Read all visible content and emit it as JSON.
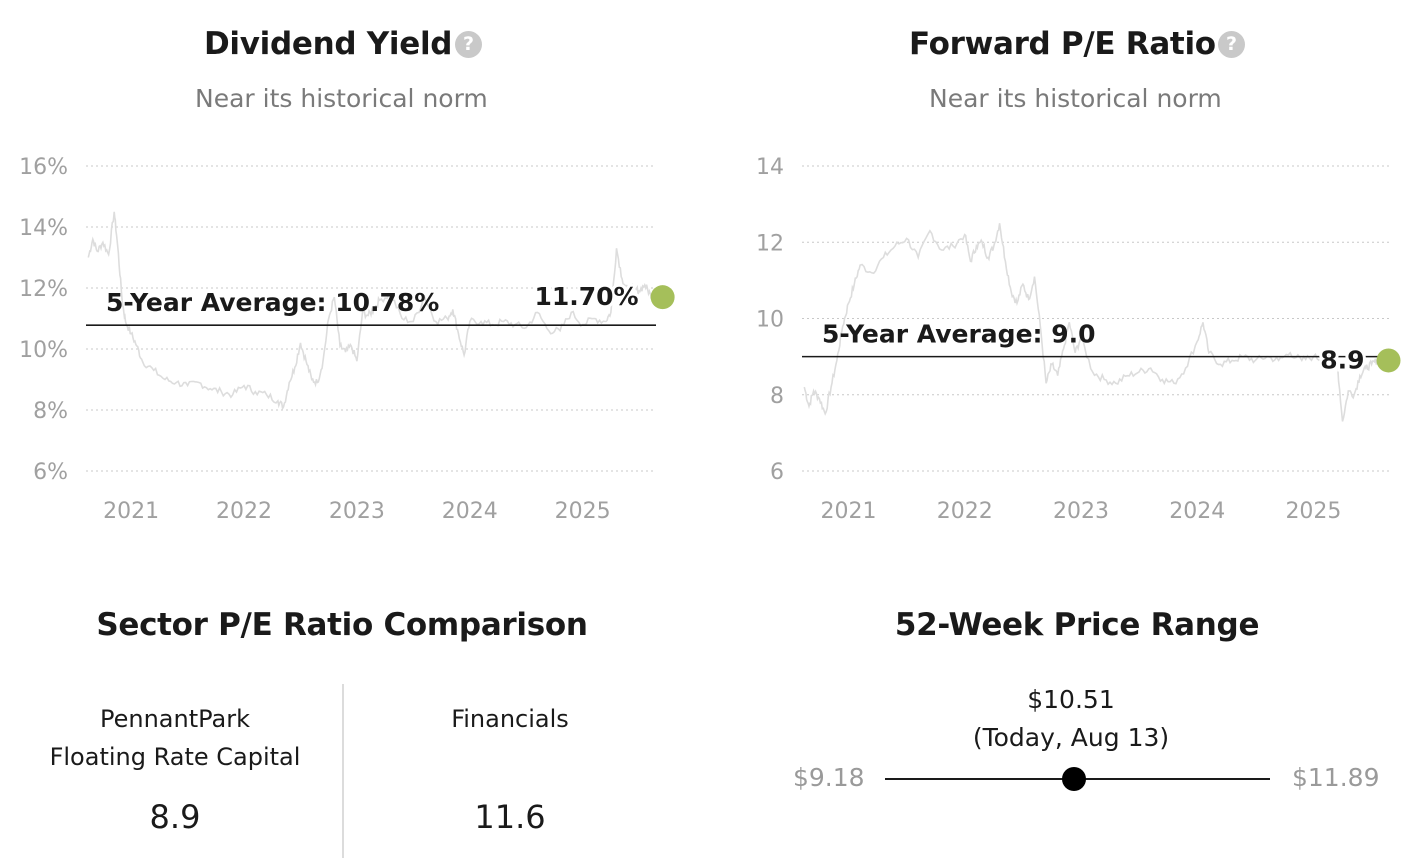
{
  "dividend_yield": {
    "title": "Dividend Yield",
    "subtitle": "Near its historical norm",
    "average_label": "5-Year Average: 10.78%",
    "current_label": "11.70%"
  },
  "forward_pe": {
    "title": "Forward P/E Ratio",
    "subtitle": "Near its historical norm",
    "average_label": "5-Year Average: 9.0",
    "current_label": "8.9"
  },
  "sector_pe": {
    "title": "Sector P/E Ratio Comparison",
    "company_line1": "PennantPark",
    "company_line2": "Floating Rate Capital",
    "company_value": "8.9",
    "sector_name": "Financials",
    "sector_value": "11.6"
  },
  "price_range": {
    "title": "52-Week Price Range",
    "low_label": "$9.18",
    "high_label": "$11.89",
    "current_label": "$10.51",
    "current_note": "(Today, Aug 13)",
    "low": 9.18,
    "high": 11.89,
    "current": 10.51
  },
  "chart_data": [
    {
      "type": "line",
      "title": "Dividend Yield",
      "subtitle": "Near its historical norm",
      "y_ticks": [
        "6%",
        "8%",
        "10%",
        "12%",
        "14%",
        "16%"
      ],
      "x_ticks": [
        "2021",
        "2022",
        "2023",
        "2024",
        "2025"
      ],
      "ylim": [
        6,
        16
      ],
      "xlim": [
        2020.6,
        2025.65
      ],
      "grid": true,
      "average": 10.78,
      "current": 11.7,
      "series": [
        {
          "color": "#dddddd",
          "x": [
            2020.62,
            2020.66,
            2020.7,
            2020.75,
            2020.8,
            2020.85,
            2020.88,
            2020.92,
            2020.95,
            2021.0,
            2021.05,
            2021.1,
            2021.2,
            2021.3,
            2021.4,
            2021.5,
            2021.6,
            2021.7,
            2021.8,
            2021.9,
            2022.0,
            2022.1,
            2022.2,
            2022.3,
            2022.35,
            2022.4,
            2022.45,
            2022.5,
            2022.55,
            2022.6,
            2022.65,
            2022.7,
            2022.75,
            2022.8,
            2022.85,
            2022.9,
            2022.95,
            2023.0,
            2023.05,
            2023.1,
            2023.15,
            2023.2,
            2023.3,
            2023.4,
            2023.5,
            2023.6,
            2023.7,
            2023.8,
            2023.85,
            2023.9,
            2023.95,
            2024.0,
            2024.1,
            2024.2,
            2024.3,
            2024.4,
            2024.5,
            2024.6,
            2024.7,
            2024.8,
            2024.9,
            2025.0,
            2025.1,
            2025.2,
            2025.25,
            2025.3,
            2025.35,
            2025.4,
            2025.45,
            2025.5,
            2025.55,
            2025.6,
            2025.62
          ],
          "y": [
            13.0,
            13.6,
            13.2,
            13.5,
            13.1,
            14.5,
            13.4,
            11.6,
            10.9,
            10.5,
            10.1,
            9.6,
            9.3,
            9.0,
            8.9,
            8.8,
            8.9,
            8.7,
            8.6,
            8.5,
            8.8,
            8.6,
            8.5,
            8.3,
            8.1,
            8.9,
            9.4,
            10.2,
            9.6,
            9.0,
            8.9,
            9.6,
            11.0,
            11.7,
            10.1,
            9.9,
            10.1,
            9.6,
            11.2,
            11.1,
            11.3,
            11.6,
            11.8,
            11.0,
            10.9,
            11.7,
            10.9,
            11.0,
            11.3,
            10.5,
            9.8,
            10.9,
            10.9,
            10.8,
            10.9,
            10.8,
            10.7,
            11.2,
            10.6,
            10.6,
            11.2,
            10.8,
            11.0,
            10.9,
            11.2,
            13.3,
            12.3,
            11.9,
            12.0,
            11.9,
            12.1,
            11.8,
            11.7
          ]
        }
      ]
    },
    {
      "type": "line",
      "title": "Forward P/E Ratio",
      "subtitle": "Near its historical norm",
      "y_ticks": [
        "6",
        "8",
        "10",
        "12",
        "14"
      ],
      "x_ticks": [
        "2021",
        "2022",
        "2023",
        "2024",
        "2025"
      ],
      "ylim": [
        6,
        14
      ],
      "xlim": [
        2020.6,
        2025.65
      ],
      "grid": true,
      "average": 9.0,
      "current": 8.9,
      "series": [
        {
          "color": "#dddddd",
          "x": [
            2020.62,
            2020.66,
            2020.7,
            2020.75,
            2020.8,
            2020.85,
            2020.9,
            2020.95,
            2021.0,
            2021.05,
            2021.1,
            2021.2,
            2021.3,
            2021.4,
            2021.5,
            2021.6,
            2021.7,
            2021.8,
            2021.9,
            2022.0,
            2022.05,
            2022.1,
            2022.15,
            2022.2,
            2022.25,
            2022.3,
            2022.35,
            2022.4,
            2022.45,
            2022.5,
            2022.55,
            2022.6,
            2022.65,
            2022.7,
            2022.75,
            2022.8,
            2022.85,
            2022.9,
            2022.95,
            2023.0,
            2023.1,
            2023.2,
            2023.3,
            2023.4,
            2023.5,
            2023.6,
            2023.7,
            2023.8,
            2023.9,
            2024.0,
            2024.05,
            2024.1,
            2024.2,
            2024.3,
            2024.4,
            2024.5,
            2024.6,
            2024.7,
            2024.8,
            2024.9,
            2025.0,
            2025.1,
            2025.2,
            2025.25,
            2025.3,
            2025.35,
            2025.4,
            2025.45,
            2025.5,
            2025.55,
            2025.6,
            2025.62
          ],
          "y": [
            8.2,
            7.7,
            8.1,
            7.9,
            7.5,
            8.2,
            8.9,
            9.8,
            10.4,
            10.9,
            11.4,
            11.2,
            11.6,
            11.9,
            12.1,
            11.6,
            12.3,
            11.8,
            11.9,
            12.2,
            11.5,
            11.9,
            12.0,
            11.6,
            11.9,
            12.5,
            11.5,
            10.7,
            10.4,
            10.9,
            10.5,
            11.1,
            9.8,
            8.3,
            8.8,
            8.5,
            9.2,
            9.9,
            9.1,
            9.5,
            8.6,
            8.4,
            8.3,
            8.5,
            8.6,
            8.7,
            8.4,
            8.3,
            8.7,
            9.4,
            9.9,
            9.1,
            8.8,
            8.9,
            9.0,
            8.9,
            9.0,
            8.9,
            9.1,
            8.9,
            9.0,
            8.9,
            9.0,
            7.3,
            8.1,
            8.0,
            8.5,
            8.7,
            8.8,
            8.9,
            8.9,
            8.9
          ]
        }
      ]
    }
  ]
}
